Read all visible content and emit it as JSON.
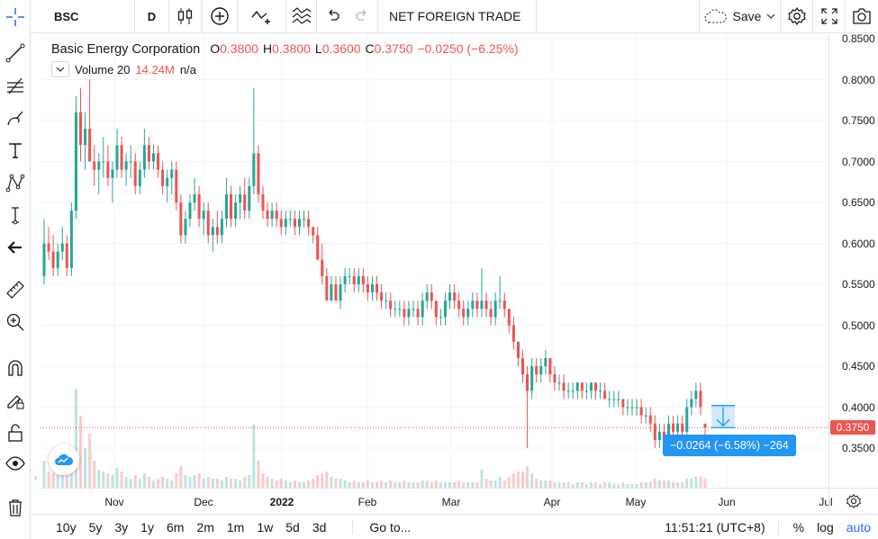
{
  "toolbar": {
    "symbol": "BSC",
    "interval": "D",
    "indicator_name": "NET FOREIGN TRADE",
    "save_label": "Save",
    "icons": [
      "candles-icon",
      "compare-add-icon",
      "indicators-icon",
      "undo-icon",
      "redo-icon",
      "cloud-icon",
      "chevron-down-icon",
      "gear-icon",
      "fullscreen-icon",
      "camera-icon"
    ]
  },
  "left_tools": [
    "crosshair-icon",
    "trend-line-icon",
    "fib-retracement-icon",
    "brush-icon",
    "text-icon",
    "pattern-icon",
    "forecast-icon",
    "back-arrow-icon",
    "ruler-icon",
    "zoom-in-icon",
    "magnet-icon",
    "lock-drawing-icon",
    "unlock-icon",
    "eye-icon",
    "trash-icon"
  ],
  "legend": {
    "name": "Basic Energy Corporation",
    "o_label": "O",
    "o_value": "0.3800",
    "h_label": "H",
    "h_value": "0.3800",
    "l_label": "L",
    "l_value": "0.3600",
    "c_label": "C",
    "c_value": "0.3750",
    "change": "−0.0250 (−6.25%)"
  },
  "volume_legend": {
    "label": "Volume 20",
    "value": "14.24M",
    "na": "n/a"
  },
  "price_axis": {
    "ticks": [
      "0.8500",
      "0.8000",
      "0.7500",
      "0.7000",
      "0.6500",
      "0.6000",
      "0.5500",
      "0.5000",
      "0.4500",
      "0.4000",
      "0.3500"
    ],
    "last_price": "0.3750"
  },
  "time_axis": {
    "ticks": [
      "Nov",
      "Dec",
      "2022",
      "Feb",
      "Mar",
      "Apr",
      "May",
      "Jun",
      "Jul"
    ]
  },
  "measure": {
    "text": "−0.0264 (−6.58%) −264"
  },
  "bottom": {
    "ranges": [
      "10y",
      "5y",
      "3y",
      "1y",
      "6m",
      "2m",
      "1m",
      "1w",
      "5d",
      "3d"
    ],
    "goto": "Go to...",
    "clock": "11:51:21 (UTC+8)",
    "percent": "%",
    "log": "log",
    "auto": "auto"
  },
  "colors": {
    "up": "#26a69a",
    "down": "#ef5350",
    "accent": "#2962ff",
    "measure": "#2196f3"
  },
  "chart_data": {
    "type": "candlestick",
    "symbol": "BSC",
    "ylim": [
      0.33,
      0.855
    ],
    "x_ticks": [
      "Nov",
      "Dec",
      "2022",
      "Feb",
      "Mar",
      "Apr",
      "May",
      "Jun",
      "Jul"
    ],
    "series": [
      {
        "name": "Basic Energy Corporation",
        "values": [
          [
            0.56,
            0.63,
            0.55,
            0.6,
            1.5
          ],
          [
            0.6,
            0.62,
            0.58,
            0.59,
            0.9
          ],
          [
            0.59,
            0.61,
            0.56,
            0.57,
            0.8
          ],
          [
            0.57,
            0.6,
            0.56,
            0.59,
            0.7
          ],
          [
            0.59,
            0.62,
            0.58,
            0.6,
            0.9
          ],
          [
            0.6,
            0.61,
            0.56,
            0.57,
            1.0
          ],
          [
            0.57,
            0.65,
            0.56,
            0.64,
            2.0
          ],
          [
            0.64,
            0.78,
            0.63,
            0.76,
            5.5
          ],
          [
            0.76,
            0.79,
            0.7,
            0.72,
            4.0
          ],
          [
            0.72,
            0.76,
            0.69,
            0.74,
            2.2
          ],
          [
            0.74,
            0.8,
            0.7,
            0.7,
            3.0
          ],
          [
            0.7,
            0.72,
            0.67,
            0.69,
            1.5
          ],
          [
            0.69,
            0.71,
            0.66,
            0.7,
            1.0
          ],
          [
            0.7,
            0.73,
            0.68,
            0.7,
            0.9
          ],
          [
            0.7,
            0.72,
            0.67,
            0.68,
            0.8
          ],
          [
            0.68,
            0.7,
            0.65,
            0.69,
            0.7
          ],
          [
            0.69,
            0.74,
            0.68,
            0.72,
            1.1
          ],
          [
            0.72,
            0.73,
            0.68,
            0.69,
            0.9
          ],
          [
            0.69,
            0.71,
            0.67,
            0.7,
            0.6
          ],
          [
            0.7,
            0.72,
            0.68,
            0.7,
            0.5
          ],
          [
            0.7,
            0.71,
            0.66,
            0.67,
            0.7
          ],
          [
            0.67,
            0.7,
            0.66,
            0.69,
            0.5
          ],
          [
            0.69,
            0.74,
            0.68,
            0.72,
            0.8
          ],
          [
            0.72,
            0.73,
            0.69,
            0.7,
            0.6
          ],
          [
            0.7,
            0.72,
            0.69,
            0.71,
            0.4
          ],
          [
            0.71,
            0.72,
            0.68,
            0.69,
            0.5
          ],
          [
            0.69,
            0.7,
            0.66,
            0.67,
            0.6
          ],
          [
            0.67,
            0.69,
            0.65,
            0.68,
            0.5
          ],
          [
            0.68,
            0.7,
            0.66,
            0.69,
            0.4
          ],
          [
            0.69,
            0.7,
            0.64,
            0.65,
            0.8
          ],
          [
            0.65,
            0.66,
            0.6,
            0.61,
            1.2
          ],
          [
            0.61,
            0.64,
            0.6,
            0.63,
            0.7
          ],
          [
            0.63,
            0.66,
            0.62,
            0.65,
            0.6
          ],
          [
            0.65,
            0.68,
            0.64,
            0.66,
            0.7
          ],
          [
            0.66,
            0.67,
            0.62,
            0.63,
            0.8
          ],
          [
            0.63,
            0.65,
            0.61,
            0.64,
            0.5
          ],
          [
            0.64,
            0.65,
            0.6,
            0.61,
            0.6
          ],
          [
            0.61,
            0.63,
            0.59,
            0.62,
            0.5
          ],
          [
            0.62,
            0.64,
            0.6,
            0.61,
            0.5
          ],
          [
            0.61,
            0.64,
            0.6,
            0.63,
            0.4
          ],
          [
            0.63,
            0.68,
            0.62,
            0.66,
            0.6
          ],
          [
            0.66,
            0.67,
            0.62,
            0.63,
            0.5
          ],
          [
            0.63,
            0.66,
            0.62,
            0.65,
            0.5
          ],
          [
            0.65,
            0.67,
            0.63,
            0.66,
            0.4
          ],
          [
            0.66,
            0.68,
            0.63,
            0.64,
            0.6
          ],
          [
            0.64,
            0.68,
            0.63,
            0.67,
            0.7
          ],
          [
            0.67,
            0.79,
            0.66,
            0.71,
            3.5
          ],
          [
            0.71,
            0.72,
            0.65,
            0.66,
            1.5
          ],
          [
            0.66,
            0.67,
            0.63,
            0.64,
            0.8
          ],
          [
            0.64,
            0.65,
            0.62,
            0.63,
            0.6
          ],
          [
            0.63,
            0.65,
            0.62,
            0.64,
            0.5
          ],
          [
            0.64,
            0.65,
            0.62,
            0.63,
            0.4
          ],
          [
            0.63,
            0.64,
            0.61,
            0.62,
            0.5
          ],
          [
            0.62,
            0.64,
            0.61,
            0.63,
            0.4
          ],
          [
            0.63,
            0.64,
            0.62,
            0.63,
            0.3
          ],
          [
            0.63,
            0.64,
            0.61,
            0.62,
            0.4
          ],
          [
            0.62,
            0.64,
            0.61,
            0.63,
            0.3
          ],
          [
            0.63,
            0.64,
            0.62,
            0.63,
            0.3
          ],
          [
            0.63,
            0.64,
            0.61,
            0.62,
            0.4
          ],
          [
            0.62,
            0.62,
            0.6,
            0.61,
            0.5
          ],
          [
            0.61,
            0.62,
            0.58,
            0.58,
            0.7
          ],
          [
            0.58,
            0.6,
            0.55,
            0.56,
            0.8
          ],
          [
            0.56,
            0.57,
            0.53,
            0.53,
            0.9
          ],
          [
            0.53,
            0.56,
            0.53,
            0.55,
            0.6
          ],
          [
            0.55,
            0.56,
            0.53,
            0.53,
            0.5
          ],
          [
            0.53,
            0.56,
            0.52,
            0.55,
            0.5
          ],
          [
            0.55,
            0.57,
            0.54,
            0.56,
            0.4
          ],
          [
            0.56,
            0.57,
            0.55,
            0.56,
            0.3
          ],
          [
            0.56,
            0.57,
            0.54,
            0.55,
            0.4
          ],
          [
            0.55,
            0.57,
            0.54,
            0.56,
            0.3
          ],
          [
            0.56,
            0.57,
            0.54,
            0.55,
            0.3
          ],
          [
            0.55,
            0.56,
            0.53,
            0.54,
            0.4
          ],
          [
            0.54,
            0.56,
            0.53,
            0.55,
            0.3
          ],
          [
            0.55,
            0.56,
            0.53,
            0.54,
            0.3
          ],
          [
            0.54,
            0.55,
            0.52,
            0.53,
            0.4
          ],
          [
            0.53,
            0.54,
            0.52,
            0.53,
            0.3
          ],
          [
            0.53,
            0.54,
            0.51,
            0.52,
            0.4
          ],
          [
            0.52,
            0.53,
            0.51,
            0.52,
            0.3
          ],
          [
            0.52,
            0.53,
            0.51,
            0.52,
            0.3
          ],
          [
            0.52,
            0.53,
            0.5,
            0.51,
            0.4
          ],
          [
            0.51,
            0.53,
            0.5,
            0.52,
            0.3
          ],
          [
            0.52,
            0.53,
            0.51,
            0.52,
            0.3
          ],
          [
            0.52,
            0.53,
            0.5,
            0.51,
            0.3
          ],
          [
            0.51,
            0.54,
            0.5,
            0.53,
            0.4
          ],
          [
            0.53,
            0.55,
            0.52,
            0.54,
            0.4
          ],
          [
            0.54,
            0.55,
            0.52,
            0.53,
            0.3
          ],
          [
            0.53,
            0.53,
            0.5,
            0.51,
            0.4
          ],
          [
            0.51,
            0.52,
            0.5,
            0.51,
            0.3
          ],
          [
            0.51,
            0.54,
            0.5,
            0.53,
            0.3
          ],
          [
            0.53,
            0.55,
            0.52,
            0.54,
            0.3
          ],
          [
            0.54,
            0.55,
            0.52,
            0.53,
            0.3
          ],
          [
            0.53,
            0.54,
            0.51,
            0.52,
            0.4
          ],
          [
            0.52,
            0.53,
            0.5,
            0.51,
            0.3
          ],
          [
            0.51,
            0.53,
            0.5,
            0.52,
            0.3
          ],
          [
            0.52,
            0.54,
            0.51,
            0.53,
            0.3
          ],
          [
            0.53,
            0.54,
            0.51,
            0.52,
            0.3
          ],
          [
            0.52,
            0.57,
            0.51,
            0.53,
            1.0
          ],
          [
            0.53,
            0.54,
            0.51,
            0.52,
            0.5
          ],
          [
            0.52,
            0.53,
            0.5,
            0.51,
            0.4
          ],
          [
            0.51,
            0.54,
            0.5,
            0.53,
            0.4
          ],
          [
            0.53,
            0.56,
            0.52,
            0.53,
            0.6
          ],
          [
            0.53,
            0.54,
            0.51,
            0.52,
            0.4
          ],
          [
            0.52,
            0.52,
            0.49,
            0.5,
            0.6
          ],
          [
            0.5,
            0.51,
            0.47,
            0.48,
            0.8
          ],
          [
            0.48,
            0.48,
            0.45,
            0.46,
            0.9
          ],
          [
            0.46,
            0.47,
            0.43,
            0.44,
            0.9
          ],
          [
            0.44,
            0.45,
            0.35,
            0.42,
            1.2
          ],
          [
            0.42,
            0.46,
            0.41,
            0.45,
            0.8
          ],
          [
            0.45,
            0.46,
            0.43,
            0.44,
            0.5
          ],
          [
            0.44,
            0.46,
            0.43,
            0.45,
            0.4
          ],
          [
            0.45,
            0.47,
            0.44,
            0.46,
            0.4
          ],
          [
            0.46,
            0.46,
            0.43,
            0.44,
            0.4
          ],
          [
            0.44,
            0.45,
            0.42,
            0.43,
            0.3
          ],
          [
            0.43,
            0.44,
            0.42,
            0.43,
            0.3
          ],
          [
            0.43,
            0.44,
            0.41,
            0.42,
            0.3
          ],
          [
            0.42,
            0.43,
            0.41,
            0.42,
            0.3
          ],
          [
            0.42,
            0.43,
            0.41,
            0.42,
            0.2
          ],
          [
            0.42,
            0.43,
            0.41,
            0.43,
            0.3
          ],
          [
            0.43,
            0.43,
            0.41,
            0.42,
            0.3
          ],
          [
            0.42,
            0.43,
            0.41,
            0.42,
            0.2
          ],
          [
            0.42,
            0.43,
            0.41,
            0.43,
            0.3
          ],
          [
            0.43,
            0.43,
            0.41,
            0.42,
            0.3
          ],
          [
            0.42,
            0.43,
            0.41,
            0.42,
            0.2
          ],
          [
            0.42,
            0.43,
            0.41,
            0.41,
            0.3
          ],
          [
            0.41,
            0.42,
            0.4,
            0.41,
            0.3
          ],
          [
            0.41,
            0.42,
            0.4,
            0.41,
            0.2
          ],
          [
            0.41,
            0.42,
            0.4,
            0.41,
            0.2
          ],
          [
            0.41,
            0.41,
            0.39,
            0.4,
            0.3
          ],
          [
            0.4,
            0.41,
            0.39,
            0.4,
            0.2
          ],
          [
            0.4,
            0.41,
            0.39,
            0.4,
            0.2
          ],
          [
            0.4,
            0.41,
            0.39,
            0.4,
            0.2
          ],
          [
            0.4,
            0.41,
            0.38,
            0.39,
            0.3
          ],
          [
            0.39,
            0.4,
            0.38,
            0.39,
            0.3
          ],
          [
            0.39,
            0.4,
            0.37,
            0.38,
            0.3
          ],
          [
            0.38,
            0.39,
            0.35,
            0.36,
            0.5
          ],
          [
            0.36,
            0.38,
            0.35,
            0.37,
            0.4
          ],
          [
            0.37,
            0.38,
            0.35,
            0.36,
            0.4
          ],
          [
            0.36,
            0.39,
            0.35,
            0.38,
            0.4
          ],
          [
            0.38,
            0.39,
            0.36,
            0.37,
            0.3
          ],
          [
            0.37,
            0.39,
            0.36,
            0.38,
            0.3
          ],
          [
            0.38,
            0.39,
            0.36,
            0.37,
            0.3
          ],
          [
            0.37,
            0.41,
            0.36,
            0.4,
            0.5
          ],
          [
            0.4,
            0.42,
            0.39,
            0.41,
            0.5
          ],
          [
            0.41,
            0.43,
            0.4,
            0.42,
            0.6
          ],
          [
            0.42,
            0.43,
            0.39,
            0.4,
            0.6
          ],
          [
            0.38,
            0.38,
            0.36,
            0.375,
            0.5
          ]
        ]
      }
    ],
    "value_format": "[open, high, low, close, volume_millions]"
  }
}
